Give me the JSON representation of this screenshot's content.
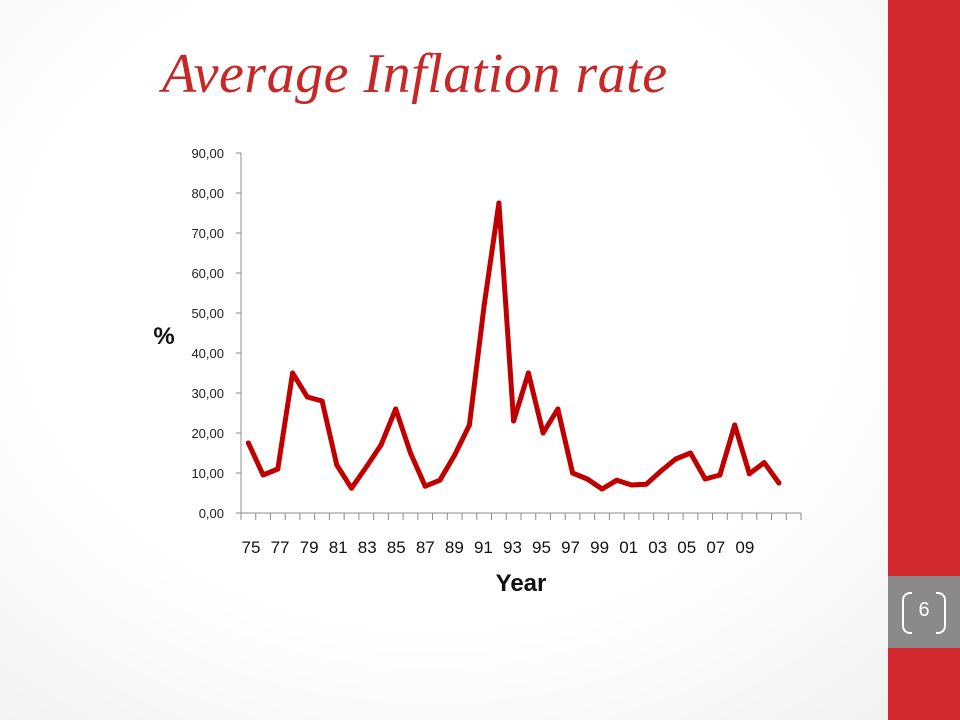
{
  "slide": {
    "title": "Average Inflation rate",
    "page_number": "6",
    "accent_color": "#d1292d",
    "title_color": "#c62828"
  },
  "chart_data": {
    "type": "line",
    "title": "Average Inflation rate",
    "xlabel": "Year",
    "ylabel": "%",
    "ylim": [
      0,
      90
    ],
    "y_ticks": [
      "0,00",
      "10,00",
      "20,00",
      "30,00",
      "40,00",
      "50,00",
      "60,00",
      "70,00",
      "80,00",
      "90,00"
    ],
    "x_tick_labels": [
      "75",
      "77",
      "79",
      "81",
      "83",
      "85",
      "87",
      "89",
      "91",
      "93",
      "95",
      "97",
      "99",
      "01",
      "03",
      "05",
      "07",
      "09"
    ],
    "series": [
      {
        "color": "#c00000",
        "x": [
          1975,
          1976,
          1977,
          1978,
          1979,
          1980,
          1981,
          1982,
          1983,
          1984,
          1985,
          1986,
          1987,
          1988,
          1989,
          1990,
          1991,
          1992,
          1993,
          1994,
          1995,
          1996,
          1997,
          1998,
          1999,
          2000,
          2001,
          2002,
          2003,
          2004,
          2005,
          2006,
          2007,
          2008,
          2009,
          2010,
          2011
        ],
        "values": [
          17.5,
          9.5,
          11.0,
          35.0,
          29.0,
          28.0,
          12.0,
          6.2,
          11.5,
          17.0,
          26.0,
          15.0,
          6.7,
          8.2,
          14.5,
          22.0,
          52.0,
          77.5,
          23.0,
          35.0,
          20.0,
          26.0,
          10.0,
          8.5,
          6.0,
          8.2,
          7.0,
          7.2,
          10.5,
          13.5,
          15.0,
          8.5,
          9.5,
          22.0,
          9.8,
          12.6,
          7.5
        ]
      }
    ],
    "grid": false,
    "legend": "none"
  }
}
